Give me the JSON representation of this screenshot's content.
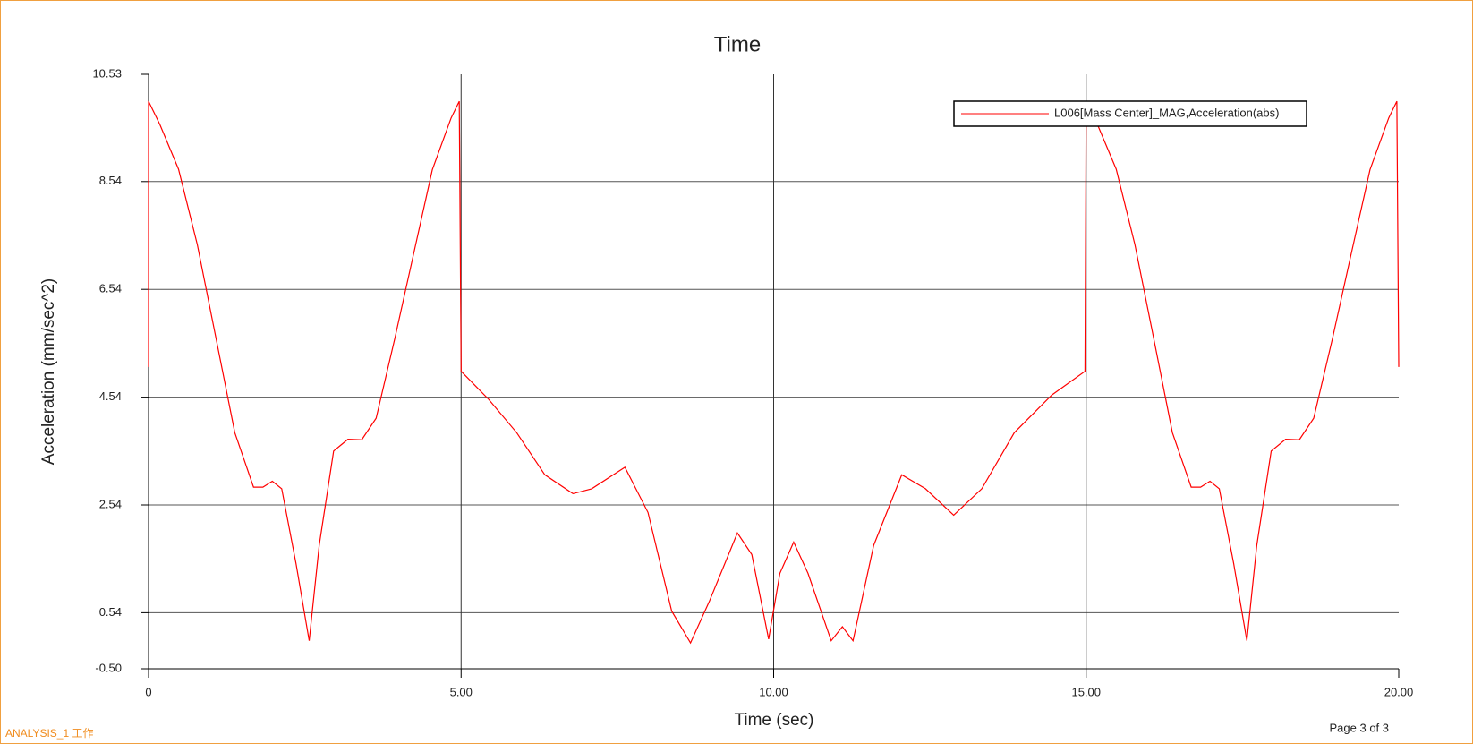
{
  "chart_data": {
    "type": "line",
    "title": "Time",
    "x_label": "Time (sec)",
    "y_label": "Acceleration (mm/sec^2)",
    "x": [
      0,
      0,
      0.18,
      0.48,
      0.78,
      1.08,
      1.38,
      1.68,
      1.83,
      1.98,
      2.13,
      2.36,
      2.57,
      2.73,
      2.96,
      3.19,
      3.41,
      3.64,
      3.94,
      4.24,
      4.54,
      4.84,
      4.97,
      5.0,
      5.44,
      5.89,
      6.34,
      6.79,
      7.09,
      7.62,
      7.99,
      8.37,
      8.67,
      8.97,
      9.42,
      9.65,
      9.92,
      10.1,
      10.32,
      10.55,
      10.92,
      11.1,
      11.27,
      11.6,
      12.05,
      12.43,
      12.88,
      13.33,
      13.85,
      14.45,
      14.98,
      15,
      15.18,
      15.48,
      15.78,
      16.08,
      16.38,
      16.68,
      16.83,
      16.98,
      17.13,
      17.36,
      17.57,
      17.73,
      17.96,
      18.19,
      18.41,
      18.64,
      18.94,
      19.24,
      19.54,
      19.84,
      19.97,
      20
    ],
    "series": [
      {
        "name": "L006[Mass Center]_MAG,Acceleration(abs)",
        "color": "#ff0000",
        "values": [
          5.1,
          10.03,
          9.6,
          8.77,
          7.37,
          5.63,
          3.88,
          2.87,
          2.87,
          2.98,
          2.84,
          1.45,
          0.02,
          1.79,
          3.54,
          3.76,
          3.75,
          4.15,
          5.63,
          7.2,
          8.76,
          9.72,
          10.03,
          5.02,
          4.5,
          3.88,
          3.1,
          2.75,
          2.84,
          3.24,
          2.4,
          0.57,
          -0.02,
          0.75,
          2.02,
          1.62,
          0.05,
          1.27,
          1.85,
          1.27,
          0.02,
          0.28,
          0.02,
          1.79,
          3.1,
          2.84,
          2.35,
          2.84,
          3.88,
          4.58,
          5.02,
          10.03,
          9.6,
          8.77,
          7.37,
          5.63,
          3.88,
          2.87,
          2.87,
          2.98,
          2.84,
          1.45,
          0.02,
          1.79,
          3.54,
          3.76,
          3.75,
          4.15,
          5.63,
          7.2,
          8.76,
          9.72,
          10.03,
          5.1
        ]
      }
    ],
    "xlim": [
      0,
      20
    ],
    "ylim": [
      -0.5,
      10.53
    ],
    "xticks": [
      0,
      {
        "value": 5,
        "label": "5.00"
      },
      {
        "value": 10,
        "label": "10.00"
      },
      {
        "value": 15,
        "label": "15.00"
      },
      {
        "value": 20,
        "label": "20.00"
      }
    ],
    "yticks": [
      {
        "value": -0.5,
        "label": "-0.50"
      },
      0.54,
      2.54,
      4.54,
      6.54,
      8.54,
      10.53
    ],
    "grid": true,
    "legend": "top-right"
  },
  "footer_left": "ANALYSIS_1 工作",
  "page_label": "Page 3 of 3"
}
